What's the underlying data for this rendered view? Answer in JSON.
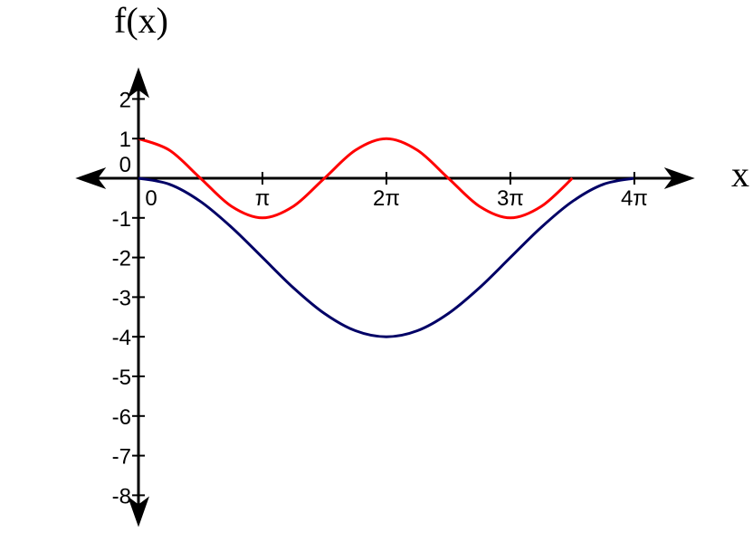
{
  "chart_data": {
    "type": "line",
    "title": "",
    "xlabel": "x",
    "ylabel": "f(x)",
    "xlim": [
      -1.6,
      14.1
    ],
    "ylim": [
      -8.8,
      2.8
    ],
    "x_ticks": [
      {
        "value": 0,
        "label": "0"
      },
      {
        "value": 3.14159,
        "label": "π"
      },
      {
        "value": 6.28319,
        "label": "2π"
      },
      {
        "value": 9.42478,
        "label": "3π"
      },
      {
        "value": 12.56637,
        "label": "4π"
      }
    ],
    "y_ticks": [
      {
        "value": 2,
        "label": "2"
      },
      {
        "value": 1,
        "label": "1"
      },
      {
        "value": 0,
        "label": "0"
      },
      {
        "value": -1,
        "label": "-1"
      },
      {
        "value": -2,
        "label": "-2"
      },
      {
        "value": -3,
        "label": "-3"
      },
      {
        "value": -4,
        "label": "-4"
      },
      {
        "value": -5,
        "label": "-5"
      },
      {
        "value": -6,
        "label": "-6"
      },
      {
        "value": -7,
        "label": "-7"
      },
      {
        "value": -8,
        "label": "-8"
      }
    ],
    "series": [
      {
        "color": "#ff0000",
        "x": [
          0,
          0.7854,
          1.5708,
          2.3562,
          3.1416,
          3.927,
          4.7124,
          5.4978,
          6.2832,
          7.0686,
          7.854,
          8.6394,
          9.4248,
          10.2102,
          10.9956
        ],
        "y": [
          1,
          0.707,
          0,
          -0.707,
          -1,
          -0.707,
          0,
          0.707,
          1,
          0.707,
          0,
          -0.707,
          -1,
          -0.707,
          0
        ]
      },
      {
        "color": "#000066",
        "x": [
          0,
          0.7854,
          1.5708,
          2.3562,
          3.1416,
          3.927,
          4.7124,
          5.4978,
          6.2832,
          7.0686,
          7.854,
          8.6394,
          9.4248,
          10.2102,
          10.9956,
          11.781,
          12.5664
        ],
        "y": [
          0,
          -0.152,
          -0.586,
          -1.235,
          -2,
          -2.765,
          -3.414,
          -3.848,
          -4,
          -3.848,
          -3.414,
          -2.765,
          -2,
          -1.235,
          -0.586,
          -0.152,
          0
        ]
      }
    ],
    "grid": false,
    "colors": {
      "axis": "#000000",
      "text": "#000000"
    }
  }
}
